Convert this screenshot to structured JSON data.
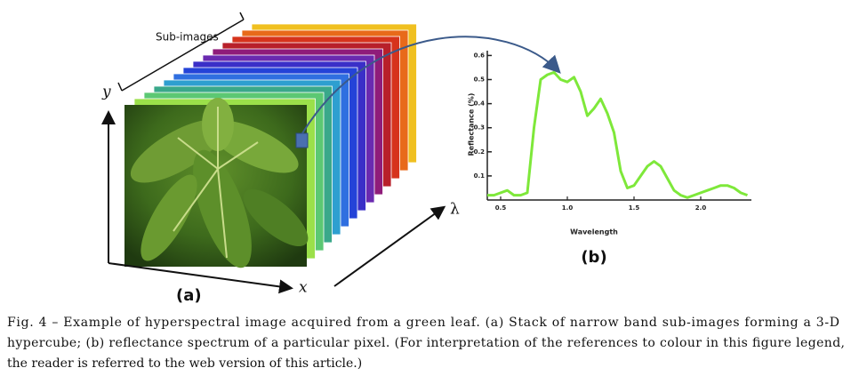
{
  "figure": {
    "sub_images_label": "Sub-images",
    "y_axis": "y",
    "x_axis": "x",
    "lambda_axis": "λ",
    "panel_a": "(a)"
  },
  "chart_data": {
    "type": "line",
    "panel_label": "(b)",
    "y_label": "Reflectance (%)",
    "x_label": "Wavelength",
    "x": [
      0.4,
      0.45,
      0.5,
      0.55,
      0.6,
      0.65,
      0.7,
      0.75,
      0.8,
      0.85,
      0.9,
      0.95,
      1.0,
      1.05,
      1.1,
      1.15,
      1.2,
      1.25,
      1.3,
      1.35,
      1.4,
      1.45,
      1.5,
      1.55,
      1.6,
      1.65,
      1.7,
      1.75,
      1.8,
      1.85,
      1.9,
      1.95,
      2.0,
      2.05,
      2.1,
      2.15,
      2.2,
      2.25,
      2.3,
      2.35
    ],
    "series": [
      {
        "color": "#7ee83a",
        "values": [
          0.02,
          0.02,
          0.03,
          0.04,
          0.02,
          0.02,
          0.03,
          0.3,
          0.5,
          0.52,
          0.53,
          0.5,
          0.49,
          0.51,
          0.45,
          0.35,
          0.38,
          0.42,
          0.36,
          0.28,
          0.12,
          0.05,
          0.06,
          0.1,
          0.14,
          0.16,
          0.14,
          0.09,
          0.04,
          0.02,
          0.01,
          0.02,
          0.03,
          0.04,
          0.05,
          0.06,
          0.06,
          0.05,
          0.03,
          0.02
        ]
      }
    ],
    "xlim": [
      0.4,
      2.38
    ],
    "ylim": [
      0,
      0.62
    ],
    "xticks": [
      0.5,
      {
        "value": 1,
        "label": "1.0"
      },
      1.5,
      {
        "value": 2,
        "label": "2.0"
      }
    ],
    "yticks": [
      0.1,
      0.2,
      0.3,
      0.4,
      0.5,
      0.6
    ]
  },
  "caption": {
    "lines": [
      "Fig. 4 – Example of hyperspectral image acquired from a green leaf. (a) Stack of narrow band sub-images forming a 3-D",
      "hypercube; (b) reflectance spectrum of a particular pixel. (For interpretation of the references to colour in this figure legend,",
      "the reader is referred to the web version of this article.)"
    ]
  }
}
